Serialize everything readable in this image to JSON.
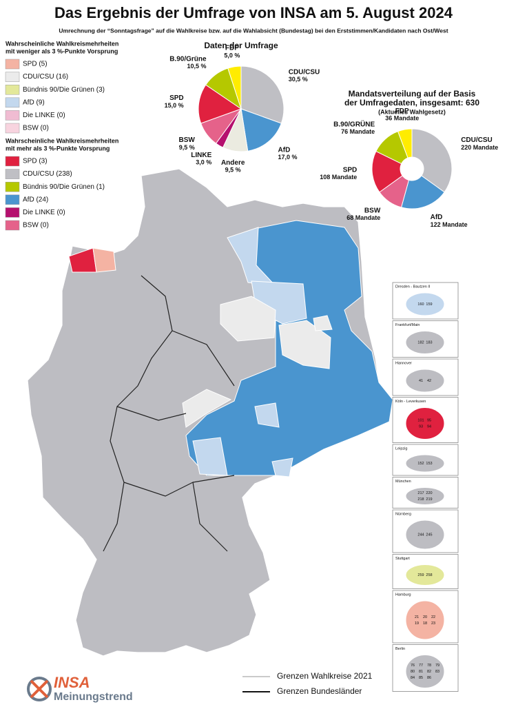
{
  "title": "Das Ergebnis der Umfrage von INSA am 5. August 2024",
  "subtitle": "Umrechnung der “Sonntagsfrage” auf die Wahlkreise bzw. auf die Wahlabsicht (Bundestag) bei den Erststimmen/Kandidaten nach Ost/West",
  "legend_low": {
    "title_lines": [
      "Wahrscheinliche Wahlkreismehrheiten",
      "mit weniger als 3 %-Punkte Vorsprung"
    ],
    "items": [
      {
        "label": "SPD (5)",
        "color": "#f4b3a3"
      },
      {
        "label": "CDU/CSU (16)",
        "color": "#ebebeb"
      },
      {
        "label": "Bündnis 90/Die Grünen (3)",
        "color": "#e3e89a"
      },
      {
        "label": "AfD (9)",
        "color": "#c3d8ee"
      },
      {
        "label": "Die LINKE (0)",
        "color": "#f0bcd2"
      },
      {
        "label": "BSW (0)",
        "color": "#f8d4df"
      }
    ]
  },
  "legend_high": {
    "title_lines": [
      "Wahrscheinliche Wahlkreismehrheiten",
      "mit mehr als 3 %-Punkte Vorsprung"
    ],
    "items": [
      {
        "label": "SPD (3)",
        "color": "#e0213f"
      },
      {
        "label": "CDU/CSU (238)",
        "color": "#bfbfc4"
      },
      {
        "label": "Bündnis 90/Die Grünen (1)",
        "color": "#b5c800"
      },
      {
        "label": "AfD (24)",
        "color": "#4a95cf"
      },
      {
        "label": "Die LINKE (0)",
        "color": "#b5106e"
      },
      {
        "label": "BSW (0)",
        "color": "#e5628a"
      }
    ]
  },
  "chart_data": [
    {
      "type": "pie",
      "title_lines": [
        "Daten der Umfrage"
      ],
      "categories": [
        "CDU/CSU",
        "AfD",
        "Andere",
        "LINKE",
        "BSW",
        "SPD",
        "B.90/Grüne",
        "FDP"
      ],
      "values": [
        30.5,
        17.0,
        9.5,
        3.0,
        9.5,
        15.0,
        10.5,
        5.0
      ],
      "value_labels": [
        "30,5 %",
        "17,0 %",
        "9,5 %",
        "3,0 %",
        "9,5 %",
        "15,0 %",
        "10,5 %",
        "5,0 %"
      ],
      "colors": [
        "#bfbfc4",
        "#4a95cf",
        "#ebebe0",
        "#b5106e",
        "#e5628a",
        "#e0213f",
        "#b5c800",
        "#ffec00"
      ]
    },
    {
      "type": "donut",
      "title_lines": [
        "Mandatsverteilung auf der Basis",
        "der Umfragedaten, insgesamt: 630"
      ],
      "subtitle": "(Aktuelles Wahlgesetz)",
      "categories": [
        "CDU/CSU",
        "AfD",
        "BSW",
        "SPD",
        "B.90/GRÜNE",
        "FDP"
      ],
      "values": [
        220,
        122,
        68,
        108,
        76,
        36
      ],
      "value_labels": [
        "220 Mandate",
        "122 Mandate",
        "68 Mandate",
        "108 Mandate",
        "76 Mandate",
        "36 Mandate"
      ],
      "colors": [
        "#bfbfc4",
        "#4a95cf",
        "#e5628a",
        "#e0213f",
        "#b5c800",
        "#ffec00"
      ]
    }
  ],
  "insets": [
    {
      "title": "Dresden - Bautzen II",
      "numbers": [
        "160",
        "159"
      ]
    },
    {
      "title": "Frankfurt/Main",
      "numbers": [
        "182",
        "183"
      ]
    },
    {
      "title": "Hannover",
      "numbers": [
        "41",
        "42"
      ]
    },
    {
      "title": "Köln - Leverkusen",
      "numbers": [
        "101",
        "95",
        "93",
        "94"
      ]
    },
    {
      "title": "Leipzig",
      "numbers": [
        "152",
        "153"
      ]
    },
    {
      "title": "München",
      "numbers": [
        "217",
        "220",
        "218",
        "219"
      ]
    },
    {
      "title": "Nürnberg",
      "numbers": [
        "244",
        "245"
      ]
    },
    {
      "title": "Stuttgart",
      "numbers": [
        "259",
        "258"
      ]
    },
    {
      "title": "Hamburg",
      "numbers": [
        "21",
        "20",
        "22",
        "19",
        "18",
        "23"
      ]
    },
    {
      "title": "Berlin",
      "numbers": [
        "76",
        "77",
        "78",
        "79",
        "80",
        "81",
        "82",
        "83",
        "84",
        "85",
        "86"
      ]
    }
  ],
  "map_legend": [
    "Grenzen Wahlkreise 2021",
    "Grenzen Bundesländer"
  ],
  "logo": {
    "brand": "INSA",
    "tagline": "Meinungstrend"
  }
}
